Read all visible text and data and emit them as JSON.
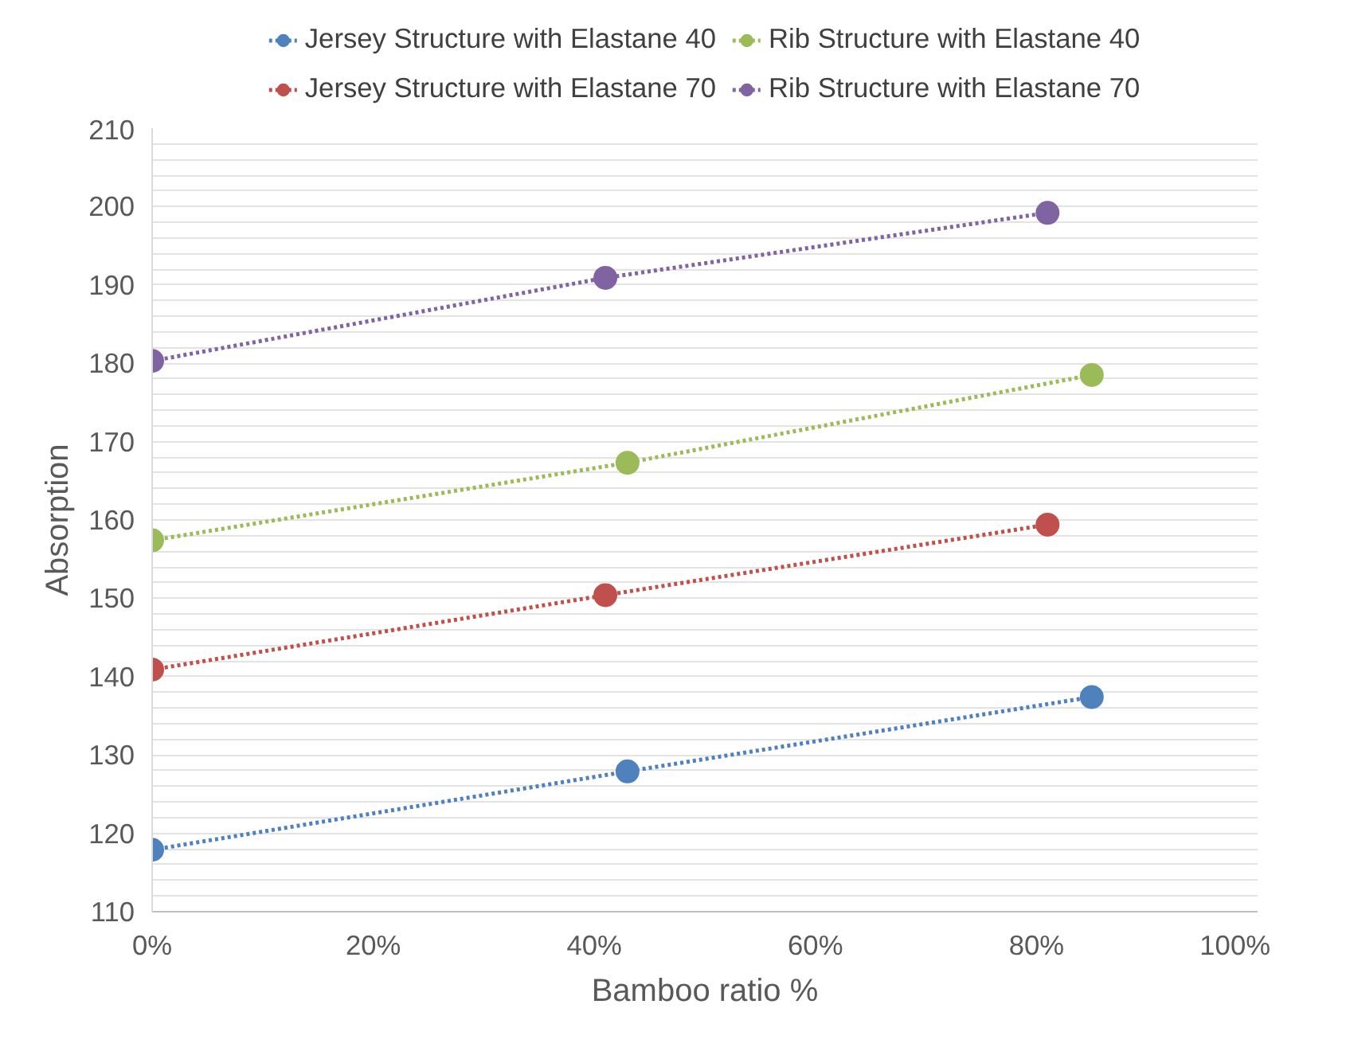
{
  "chart_data": {
    "type": "line",
    "xlabel": "Bamboo ratio %",
    "ylabel": "Absorption",
    "xlim": [
      0,
      100
    ],
    "xticks": [
      {
        "value": 0,
        "label": "0%"
      },
      {
        "value": 20,
        "label": "20%"
      },
      {
        "value": 40,
        "label": "40%"
      },
      {
        "value": 60,
        "label": "60%"
      },
      {
        "value": 80,
        "label": "80%"
      },
      {
        "value": 100,
        "label": "100%"
      }
    ],
    "ylim": [
      110,
      210
    ],
    "yticks": [
      110,
      {
        "value": 112,
        "label": null
      },
      {
        "value": 114,
        "label": null
      },
      {
        "value": 116,
        "label": null
      },
      {
        "value": 118,
        "label": null
      },
      120,
      {
        "value": 122,
        "label": null
      },
      {
        "value": 124,
        "label": null
      },
      {
        "value": 126,
        "label": null
      },
      {
        "value": 128,
        "label": null
      },
      130,
      {
        "value": 132,
        "label": null
      },
      {
        "value": 134,
        "label": null
      },
      {
        "value": 136,
        "label": null
      },
      {
        "value": 138,
        "label": null
      },
      140,
      {
        "value": 142,
        "label": null
      },
      {
        "value": 144,
        "label": null
      },
      {
        "value": 146,
        "label": null
      },
      {
        "value": 148,
        "label": null
      },
      150,
      {
        "value": 152,
        "label": null
      },
      {
        "value": 154,
        "label": null
      },
      {
        "value": 156,
        "label": null
      },
      {
        "value": 158,
        "label": null
      },
      160,
      {
        "value": 162,
        "label": null
      },
      {
        "value": 164,
        "label": null
      },
      {
        "value": 166,
        "label": null
      },
      {
        "value": 168,
        "label": null
      },
      170,
      {
        "value": 172,
        "label": null
      },
      {
        "value": 174,
        "label": null
      },
      {
        "value": 176,
        "label": null
      },
      {
        "value": 178,
        "label": null
      },
      180,
      {
        "value": 182,
        "label": null
      },
      {
        "value": 184,
        "label": null
      },
      {
        "value": 186,
        "label": null
      },
      {
        "value": 188,
        "label": null
      },
      190,
      {
        "value": 192,
        "label": null
      },
      {
        "value": 194,
        "label": null
      },
      {
        "value": 196,
        "label": null
      },
      {
        "value": 198,
        "label": null
      },
      200,
      {
        "value": 202,
        "label": null
      },
      {
        "value": 204,
        "label": null
      },
      {
        "value": 206,
        "label": null
      },
      {
        "value": 208,
        "label": null
      },
      210
    ],
    "grid": "y",
    "legend": "top",
    "marker": "circle",
    "line_style": "dotted",
    "series": [
      {
        "name": "Jersey Structure with Elastane 40",
        "color": "#4f81bd",
        "x": [
          0,
          43,
          85
        ],
        "values": [
          117.9,
          127.9,
          137.4
        ]
      },
      {
        "name": "Jersey Structure with Elastane 70",
        "color": "#c0504d",
        "x": [
          0,
          41,
          81
        ],
        "values": [
          140.9,
          150.4,
          159.4
        ]
      },
      {
        "name": "Rib Structure with Elastane 40",
        "color": "#9bbb59",
        "x": [
          0,
          43,
          85
        ],
        "values": [
          157.4,
          167.3,
          178.5
        ]
      },
      {
        "name": "Rib Structure with Elastane 70",
        "color": "#8064a2",
        "x": [
          0,
          41,
          81
        ],
        "values": [
          180.3,
          190.9,
          199.2
        ]
      }
    ]
  }
}
